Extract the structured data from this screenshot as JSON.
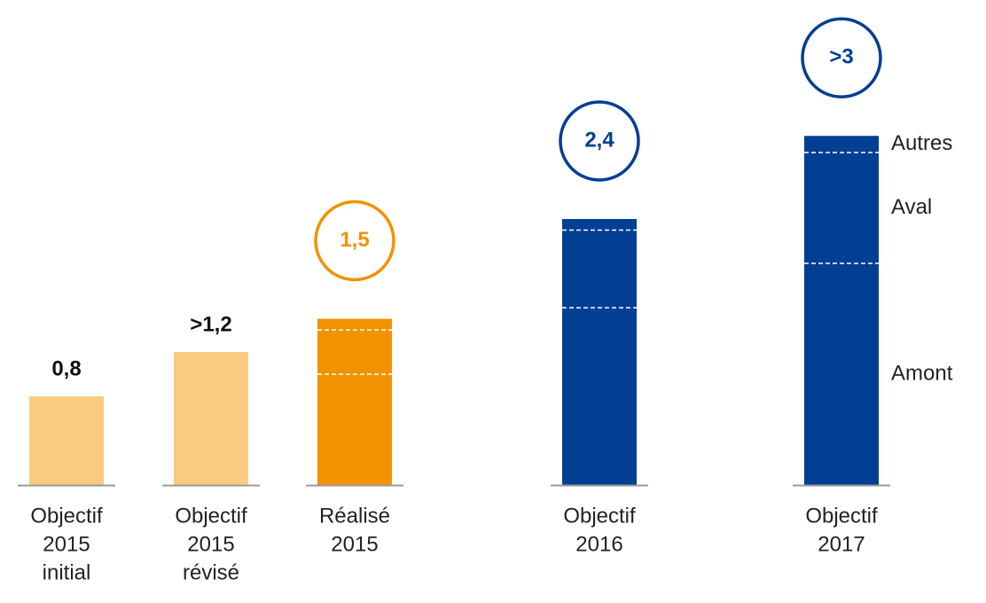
{
  "chart_data": {
    "type": "stacked-bar",
    "categories": [
      [
        "Objectif",
        "2015",
        "initial"
      ],
      [
        "Objectif",
        "2015",
        "révisé"
      ],
      [
        "Réalisé",
        "2015"
      ],
      [
        "Objectif",
        "2016"
      ],
      [
        "Objectif",
        "2017"
      ]
    ],
    "bar_colors": [
      "#f9cb80",
      "#f9cb80",
      "#f39200",
      "#003f91",
      "#003f91"
    ],
    "series": [
      {
        "values": [
          0.8,
          1.2,
          null,
          null,
          null
        ]
      },
      {
        "name": "Amont",
        "values": [
          null,
          null,
          1.0,
          1.6,
          2.0
        ]
      },
      {
        "name": "Aval",
        "values": [
          null,
          null,
          0.4,
          0.7,
          1.0
        ]
      },
      {
        "name": "Autres",
        "values": [
          null,
          null,
          0.1,
          0.1,
          0.15
        ]
      }
    ],
    "values": [
      0.8,
      1.2,
      1.5,
      2.4,
      3
    ],
    "value_labels": [
      "0,8",
      ">1,2",
      "1,5",
      "2,4",
      ">3"
    ],
    "label_circled": [
      false,
      false,
      true,
      true,
      true
    ],
    "ylim": [
      0,
      3.5
    ]
  }
}
